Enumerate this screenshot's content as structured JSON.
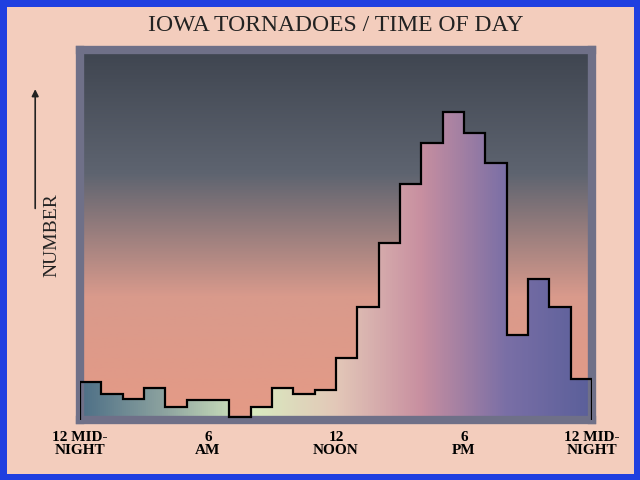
{
  "chart_data": {
    "type": "histogram",
    "title": "IOWA TORNADOES / TIME OF DAY",
    "y_label": "NUMBER",
    "bins": [
      0,
      1,
      2,
      3,
      4,
      5,
      6,
      7,
      8,
      9,
      10,
      11,
      12,
      13,
      14,
      15,
      16,
      17,
      18,
      19,
      20,
      21,
      22,
      23,
      24
    ],
    "counts": [
      37,
      25,
      20,
      31,
      13,
      19,
      19,
      3,
      13,
      31,
      25,
      29,
      60,
      110,
      172,
      230,
      270,
      300,
      280,
      250,
      83,
      137,
      110,
      40
    ],
    "xlim": [
      0,
      24
    ],
    "xticks": [
      {
        "value": 0,
        "label": "12 MID-\nNIGHT"
      },
      {
        "value": 6,
        "label": "6\nAM"
      },
      {
        "value": 12,
        "label": "12\nNOON"
      },
      {
        "value": 18,
        "label": "6\nPM"
      },
      {
        "value": 24,
        "label": "12 MID-\nNIGHT"
      }
    ],
    "ylim": [
      0,
      360
    ],
    "yticks": [],
    "tick_labels": "x",
    "grid": false,
    "color": "#000000"
  }
}
